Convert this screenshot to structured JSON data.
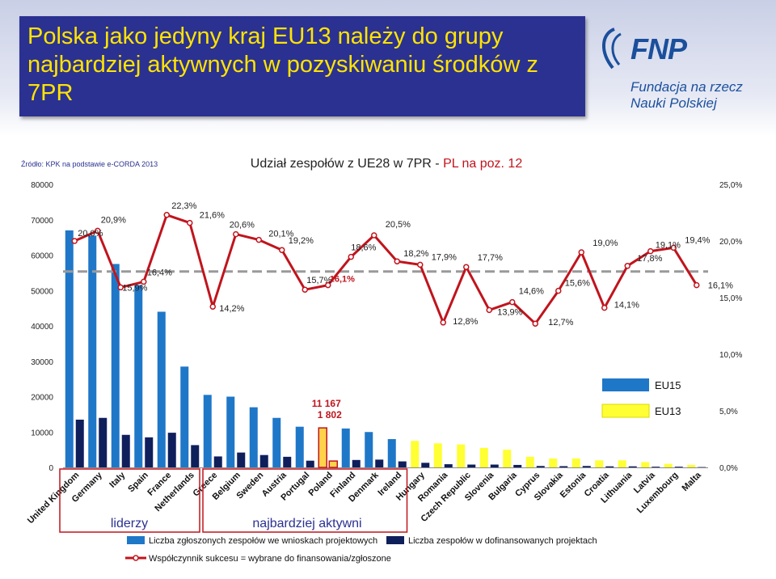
{
  "slide": {
    "title": "Polska jako jedyny kraj EU13 należy do grupy najbardziej aktywnych w pozyskiwaniu środków z 7PR",
    "logo_abbr": "FNP",
    "logo_name": "Fundacja na rzecz Nauki Polskiej",
    "source": "Źródło: KPK na podstawie e-CORDA 2013",
    "colors": {
      "title_bg": "#2b3191",
      "title_text": "#ffe400",
      "logo": "#1b4f9c"
    }
  },
  "chart_data": {
    "type": "bar",
    "title_prefix": "Udział zespołów z UE28 w 7PR - ",
    "title_highlight": "PL na poz. 12",
    "categories": [
      "United Kingdom",
      "Germany",
      "Italy",
      "Spain",
      "France",
      "Netherlands",
      "Greece",
      "Belgium",
      "Sweden",
      "Austria",
      "Portugal",
      "Poland",
      "Finland",
      "Denmark",
      "Ireland",
      "Hungary",
      "Romania",
      "Czech Republic",
      "Slovenia",
      "Bulgaria",
      "Cyprus",
      "Slovakia",
      "Estonia",
      "Croatia",
      "Lithuania",
      "Latvia",
      "Luxembourg",
      "Malta"
    ],
    "y_left": {
      "min": 0,
      "max": 80000,
      "ticks": [
        "0",
        "10000",
        "20000",
        "30000",
        "40000",
        "50000",
        "60000",
        "70000",
        "80000"
      ]
    },
    "y_right": {
      "min": 0,
      "max": 25,
      "ticks": [
        "0,0%",
        "5,0%",
        "10,0%",
        "15,0%",
        "20,0%",
        "25,0%"
      ]
    },
    "series": [
      {
        "name": "Liczba zgłoszonych zespołów we wnioskach projektowych",
        "axis": "left",
        "kind": "bar",
        "values": [
          67000,
          65500,
          57500,
          51500,
          44000,
          28500,
          20500,
          20000,
          17000,
          14000,
          11500,
          11167,
          11000,
          10000,
          8000,
          7500,
          6800,
          6500,
          5500,
          5000,
          3000,
          2500,
          2500,
          2000,
          2000,
          1500,
          1000,
          700
        ]
      },
      {
        "name": "Liczba zespołów w dofinansowanych projektach",
        "axis": "left",
        "kind": "bar",
        "values": [
          13500,
          14000,
          9200,
          8500,
          9800,
          6300,
          3100,
          4200,
          3500,
          3000,
          1900,
          1802,
          2100,
          2200,
          1700,
          1300,
          900,
          800,
          800,
          700,
          400,
          350,
          400,
          300,
          300,
          200,
          200,
          100
        ]
      },
      {
        "name": "Współczynnik sukcesu = wybrane do finansowania/zgłoszone",
        "axis": "right",
        "kind": "line",
        "values": [
          20.0,
          20.9,
          15.9,
          16.4,
          22.3,
          21.6,
          14.2,
          20.6,
          20.1,
          19.2,
          15.7,
          16.1,
          18.6,
          20.5,
          18.2,
          17.9,
          12.8,
          17.7,
          13.9,
          14.6,
          12.7,
          15.6,
          19.0,
          14.1,
          17.8,
          19.1,
          19.4,
          16.1
        ]
      }
    ],
    "line_labels": [
      "20,0%",
      "20,9%",
      "15,9%",
      "16,4%",
      "22,3%",
      "21,6%",
      "14,2%",
      "20,6%",
      "20,1%",
      "19,2%",
      "15,7%",
      "16,1%",
      "18,6%",
      "20,5%",
      "18,2%",
      "17,9%",
      "12,8%",
      "17,7%",
      "13,9%",
      "14,6%",
      "12,7%",
      "15,6%",
      "19,0%",
      "14,1%",
      "17,8%",
      "19,1%",
      "19,4%",
      "16,1%"
    ],
    "average_line": {
      "value": 17.3,
      "axis": "right",
      "style": "dashed"
    },
    "poland_labels": [
      "11 167",
      "1 802"
    ],
    "group_labels": {
      "leaders": "liderzy",
      "active": "najbardziej aktywni"
    },
    "legend_groups": [
      "EU15",
      "EU13"
    ],
    "colors": {
      "eu15_bar": "#1f77c8",
      "eu13_bar": "#ffff33",
      "poland_bar": "#ffd24a",
      "funded_bar": "#0f1f5c",
      "line": "#c0141d",
      "average": "#9a9a9a",
      "group_box": "#c0141d"
    }
  }
}
